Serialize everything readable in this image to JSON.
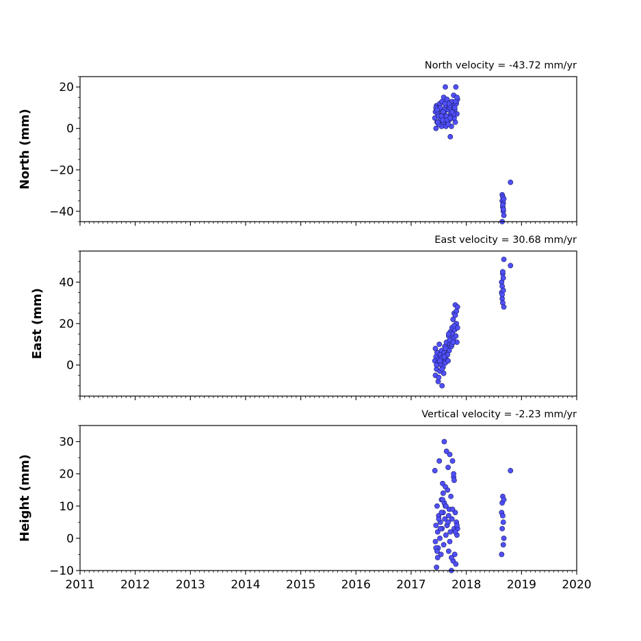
{
  "chart_data": [
    {
      "type": "scatter",
      "title": "North velocity = -43.72 mm/yr",
      "ylabel": "North (mm)",
      "xlim": [
        2011,
        2020
      ],
      "ylim": [
        -45,
        25
      ],
      "yticks": [
        20,
        0,
        -20,
        -40
      ],
      "ytick_labels": [
        "20",
        "0",
        "−20",
        "−40"
      ],
      "show_x_tick_labels": false,
      "marker_color": "#5050ff",
      "marker_edge": "#1a1a5a",
      "x": [
        2017.43,
        2017.44,
        2017.45,
        2017.46,
        2017.47,
        2017.48,
        2017.49,
        2017.5,
        2017.51,
        2017.52,
        2017.53,
        2017.54,
        2017.55,
        2017.56,
        2017.57,
        2017.58,
        2017.59,
        2017.6,
        2017.61,
        2017.62,
        2017.63,
        2017.64,
        2017.65,
        2017.66,
        2017.67,
        2017.68,
        2017.69,
        2017.7,
        2017.71,
        2017.72,
        2017.73,
        2017.74,
        2017.75,
        2017.76,
        2017.77,
        2017.78,
        2017.79,
        2017.8,
        2017.81,
        2017.82,
        2017.83,
        2017.84,
        2017.45,
        2017.5,
        2017.55,
        2017.6,
        2017.65,
        2017.7,
        2017.75,
        2017.8,
        2017.48,
        2017.58,
        2017.68,
        2017.78,
        2017.53,
        2017.63,
        2017.73,
        2017.83,
        2017.47,
        2017.57,
        2017.67,
        2017.77,
        2017.61,
        2017.71,
        2017.79,
        2017.74,
        2018.65,
        2018.65,
        2018.66,
        2018.66,
        2018.67,
        2018.67,
        2018.68,
        2018.68,
        2018.65,
        2018.66,
        2018.67,
        2018.8
      ],
      "y": [
        5,
        8,
        0,
        11,
        3,
        7,
        10,
        6,
        2,
        12,
        4,
        9,
        1,
        13,
        7,
        3,
        15,
        8,
        5,
        20,
        11,
        6,
        14,
        2,
        9,
        12,
        4,
        10,
        -4,
        7,
        1,
        13,
        8,
        5,
        16,
        11,
        9,
        3,
        20,
        12,
        7,
        14,
        10,
        2,
        6,
        9,
        4,
        11,
        7,
        13,
        3,
        8,
        12,
        5,
        10,
        1,
        6,
        15,
        9,
        4,
        2,
        7,
        12,
        5,
        10,
        8,
        -32,
        -35,
        -38,
        -33,
        -36,
        -40,
        -42,
        -34,
        -45,
        -37,
        -39,
        -26
      ]
    },
    {
      "type": "scatter",
      "title": "East velocity = 30.68 mm/yr",
      "ylabel": "East (mm)",
      "xlim": [
        2011,
        2020
      ],
      "ylim": [
        -15,
        55
      ],
      "yticks": [
        40,
        20,
        0
      ],
      "ytick_labels": [
        "40",
        "20",
        "0"
      ],
      "show_x_tick_labels": false,
      "marker_color": "#5050ff",
      "marker_edge": "#1a1a5a",
      "x": [
        2017.43,
        2017.44,
        2017.45,
        2017.46,
        2017.47,
        2017.48,
        2017.49,
        2017.5,
        2017.51,
        2017.52,
        2017.53,
        2017.54,
        2017.55,
        2017.56,
        2017.57,
        2017.58,
        2017.59,
        2017.6,
        2017.61,
        2017.62,
        2017.63,
        2017.64,
        2017.65,
        2017.66,
        2017.67,
        2017.68,
        2017.69,
        2017.7,
        2017.71,
        2017.72,
        2017.73,
        2017.74,
        2017.75,
        2017.76,
        2017.77,
        2017.78,
        2017.79,
        2017.8,
        2017.81,
        2017.82,
        2017.83,
        2017.84,
        2017.46,
        2017.5,
        2017.54,
        2017.58,
        2017.62,
        2017.66,
        2017.7,
        2017.74,
        2017.78,
        2017.82,
        2017.52,
        2017.6,
        2017.68,
        2017.76,
        2017.8,
        2017.84,
        2017.44,
        2017.56,
        2018.64,
        2018.64,
        2018.65,
        2018.65,
        2018.66,
        2018.66,
        2018.67,
        2018.67,
        2018.68,
        2018.68,
        2018.65,
        2018.66,
        2018.8
      ],
      "y": [
        2,
        -5,
        4,
        -2,
        6,
        1,
        -8,
        3,
        10,
        -3,
        5,
        0,
        7,
        -10,
        2,
        4,
        -4,
        6,
        9,
        1,
        3,
        11,
        5,
        8,
        2,
        14,
        7,
        10,
        16,
        12,
        9,
        18,
        15,
        22,
        13,
        25,
        17,
        29,
        14,
        20,
        11,
        28,
        0,
        -6,
        3,
        -1,
        8,
        5,
        12,
        10,
        19,
        26,
        2,
        4,
        15,
        11,
        24,
        18,
        8,
        -2,
        35,
        40,
        32,
        38,
        30,
        44,
        36,
        42,
        28,
        51,
        34,
        45,
        48
      ]
    },
    {
      "type": "scatter",
      "title": "Vertical velocity = -2.23 mm/yr",
      "ylabel": "Height (mm)",
      "xlim": [
        2011,
        2020
      ],
      "ylim": [
        -10,
        35
      ],
      "yticks": [
        30,
        20,
        10,
        0,
        -10
      ],
      "ytick_labels": [
        "30",
        "20",
        "10",
        "0",
        "−10"
      ],
      "show_x_tick_labels": true,
      "xticks": [
        2011,
        2012,
        2013,
        2014,
        2015,
        2016,
        2017,
        2018,
        2019,
        2020
      ],
      "xtick_labels": [
        "2011",
        "2012",
        "2013",
        "2014",
        "2015",
        "2016",
        "2017",
        "2018",
        "2019",
        "2020"
      ],
      "marker_color": "#5050ff",
      "marker_edge": "#1a1a5a",
      "x": [
        2017.43,
        2017.44,
        2017.45,
        2017.46,
        2017.47,
        2017.48,
        2017.49,
        2017.5,
        2017.51,
        2017.52,
        2017.53,
        2017.54,
        2017.55,
        2017.56,
        2017.57,
        2017.58,
        2017.59,
        2017.6,
        2017.61,
        2017.62,
        2017.63,
        2017.64,
        2017.65,
        2017.66,
        2017.67,
        2017.68,
        2017.69,
        2017.7,
        2017.71,
        2017.72,
        2017.73,
        2017.74,
        2017.75,
        2017.76,
        2017.77,
        2017.78,
        2017.79,
        2017.8,
        2017.81,
        2017.82,
        2017.83,
        2017.84,
        2017.45,
        2017.5,
        2017.55,
        2017.6,
        2017.65,
        2017.7,
        2017.75,
        2017.8,
        2017.48,
        2017.58,
        2017.68,
        2017.78,
        2017.53,
        2017.63,
        2017.73,
        2017.83,
        2017.47,
        2017.57,
        2017.67,
        2017.77,
        2017.62,
        2018.64,
        2018.64,
        2018.65,
        2018.65,
        2018.66,
        2018.66,
        2018.67,
        2018.67,
        2018.68,
        2018.68,
        2018.8
      ],
      "y": [
        21,
        -1,
        4,
        -9,
        10,
        2,
        -3,
        7,
        24,
        0,
        5,
        -5,
        12,
        3,
        17,
        8,
        -2,
        30,
        6,
        10,
        1,
        27,
        4,
        15,
        22,
        -4,
        9,
        26,
        2,
        13,
        -10,
        6,
        24,
        -7,
        19,
        3,
        -5,
        8,
        -8,
        5,
        1,
        3,
        -3,
        6,
        8,
        11,
        4,
        -1,
        9,
        2,
        -6,
        14,
        7,
        18,
        3,
        10,
        -6,
        4,
        -4,
        12,
        5,
        20,
        16,
        -5,
        8,
        11,
        3,
        7,
        13,
        -2,
        5,
        12,
        0,
        21
      ]
    }
  ]
}
